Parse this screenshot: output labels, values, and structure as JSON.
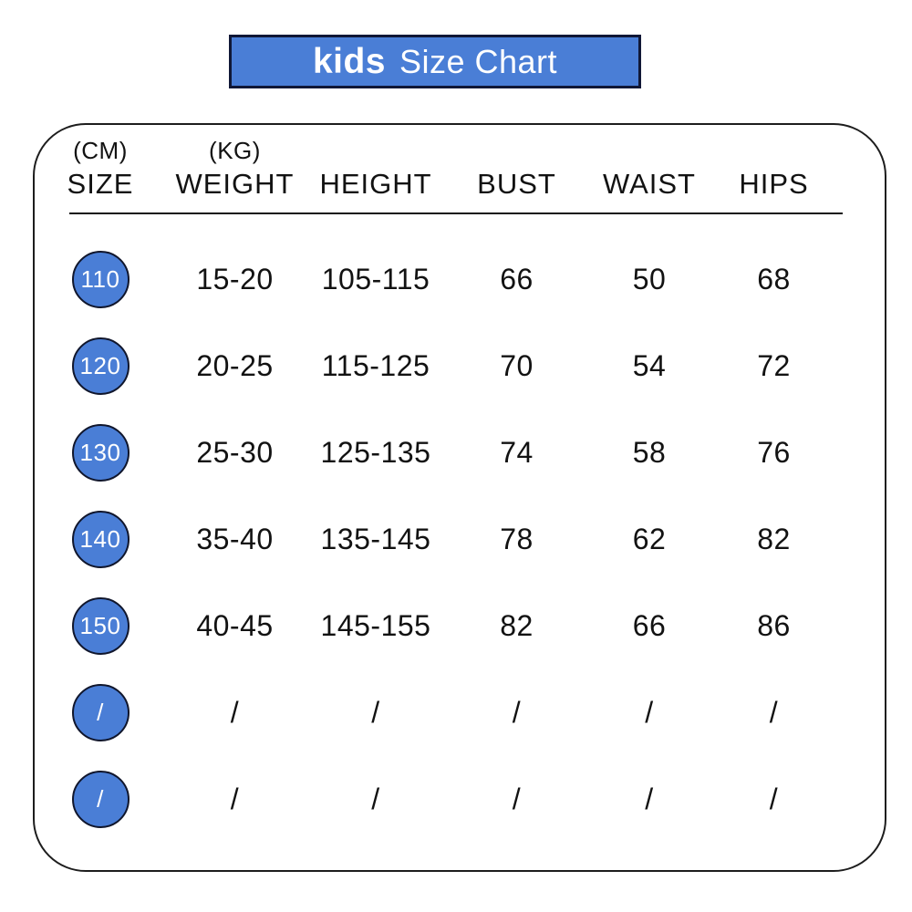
{
  "banner": {
    "brand": "kids",
    "title": "Size Chart"
  },
  "colors": {
    "accent_blue": "#4a7ed6",
    "banner_border": "#101736",
    "circle_border": "#10162c",
    "card_border": "#1d1d1d",
    "text": "#121212",
    "background": "#ffffff"
  },
  "table": {
    "units": {
      "size": "(CM)",
      "weight": "(KG)"
    }
  },
  "chart_data": {
    "type": "table",
    "title": "kids Size Chart",
    "columns": [
      "SIZE",
      "WEIGHT",
      "HEIGHT",
      "BUST",
      "WAIST",
      "HIPS"
    ],
    "column_units": {
      "SIZE": "CM",
      "WEIGHT": "KG"
    },
    "rows": [
      [
        "110",
        "15-20",
        "105-115",
        "66",
        "50",
        "68"
      ],
      [
        "120",
        "20-25",
        "115-125",
        "70",
        "54",
        "72"
      ],
      [
        "130",
        "25-30",
        "125-135",
        "74",
        "58",
        "76"
      ],
      [
        "140",
        "35-40",
        "135-145",
        "78",
        "62",
        "82"
      ],
      [
        "150",
        "40-45",
        "145-155",
        "82",
        "66",
        "86"
      ],
      [
        "/",
        "/",
        "/",
        "/",
        "/",
        "/"
      ],
      [
        "/",
        "/",
        "/",
        "/",
        "/",
        "/"
      ]
    ]
  }
}
